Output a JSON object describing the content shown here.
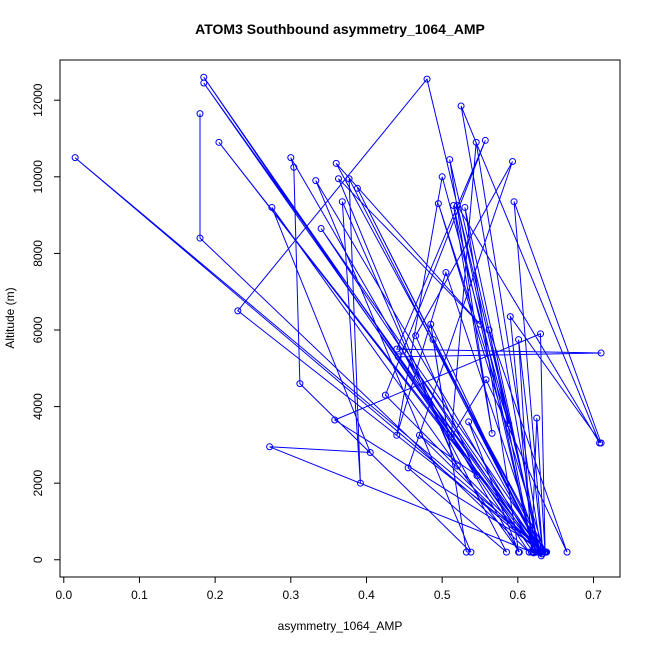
{
  "chart_data": {
    "type": "line",
    "title": "ATOM3 Southbound asymmetry_1064_AMP",
    "xlabel": "asymmetry_1064_AMP",
    "ylabel": "Altitude (m)",
    "xlim": [
      -0.005,
      0.735
    ],
    "ylim": [
      -450,
      13050
    ],
    "x_ticks": [
      0.0,
      0.1,
      0.2,
      0.3,
      0.4,
      0.5,
      0.6,
      0.7
    ],
    "x_tick_labels": [
      "0.0",
      "0.1",
      "0.2",
      "0.3",
      "0.4",
      "0.5",
      "0.6",
      "0.7"
    ],
    "y_ticks": [
      0,
      2000,
      4000,
      6000,
      8000,
      10000,
      12000
    ],
    "y_tick_labels": [
      "0",
      "2000",
      "4000",
      "6000",
      "8000",
      "10000",
      "12000"
    ],
    "grid": false,
    "legend": "none",
    "series": [
      {
        "color": "#0000ff",
        "marker": "open-circle",
        "x": [
          0.18,
          0.18,
          0.615,
          0.185,
          0.621,
          0.185,
          0.627,
          0.205,
          0.632,
          0.015,
          0.637,
          0.23,
          0.48,
          0.631,
          0.272,
          0.405,
          0.275,
          0.602,
          0.3,
          0.304,
          0.312,
          0.538,
          0.333,
          0.625,
          0.34,
          0.638,
          0.36,
          0.55,
          0.363,
          0.52,
          0.368,
          0.392,
          0.377,
          0.63,
          0.388,
          0.631,
          0.425,
          0.557,
          0.44,
          0.71,
          0.442,
          0.632,
          0.448,
          0.585,
          0.455,
          0.593,
          0.465,
          0.546,
          0.47,
          0.628,
          0.485,
          0.532,
          0.488,
          0.635,
          0.495,
          0.588,
          0.5,
          0.44,
          0.505,
          0.629,
          0.51,
          0.566,
          0.515,
          0.62,
          0.52,
          0.708,
          0.525,
          0.628,
          0.53,
          0.601,
          0.535,
          0.631,
          0.545,
          0.512,
          0.558,
          0.665,
          0.562,
          0.62,
          0.59,
          0.71,
          0.595,
          0.633,
          0.601,
          0.618,
          0.625,
          0.636,
          0.63,
          0.358,
          0.637
        ],
        "y": [
          11650,
          8400,
          200,
          12600,
          180,
          12450,
          200,
          10900,
          150,
          10500,
          200,
          6500,
          12550,
          100,
          2950,
          2800,
          9200,
          200,
          10500,
          10250,
          4600,
          200,
          9900,
          200,
          8650,
          200,
          10350,
          6150,
          9950,
          2450,
          9350,
          2000,
          9950,
          200,
          9700,
          200,
          4300,
          10950,
          5500,
          5400,
          5300,
          200,
          5450,
          200,
          2400,
          10400,
          5850,
          2200,
          3250,
          200,
          6150,
          200,
          5750,
          200,
          9300,
          3550,
          10000,
          3250,
          7500,
          200,
          10450,
          3300,
          9250,
          200,
          9250,
          3050,
          11850,
          200,
          9200,
          200,
          3600,
          200,
          10900,
          3200,
          4700,
          200,
          6000,
          200,
          6350,
          3050,
          9350,
          200,
          5750,
          200,
          3700,
          200,
          5900,
          3650,
          200
        ]
      }
    ]
  }
}
